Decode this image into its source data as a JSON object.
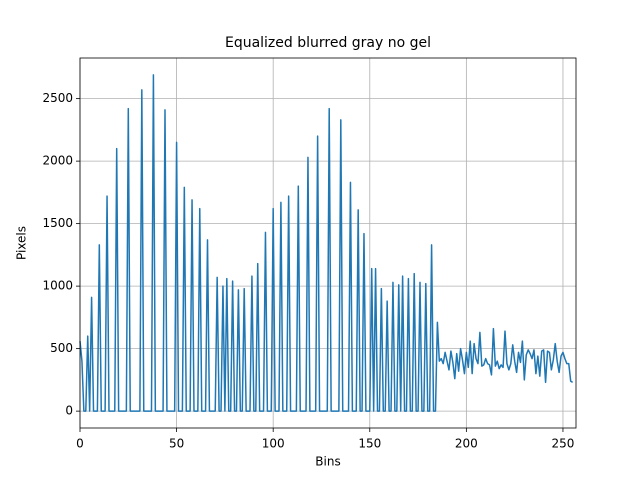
{
  "chart_data": {
    "type": "line",
    "title": "Equalized blurred gray no gel",
    "xlabel": "Bins",
    "ylabel": "Pixels",
    "x": [
      0,
      1,
      2,
      3,
      4,
      5,
      6,
      7,
      8,
      9,
      10,
      11,
      12,
      13,
      14,
      15,
      16,
      17,
      18,
      19,
      20,
      21,
      22,
      23,
      24,
      25,
      26,
      27,
      28,
      29,
      30,
      31,
      32,
      33,
      34,
      35,
      36,
      37,
      38,
      39,
      40,
      41,
      42,
      43,
      44,
      45,
      46,
      47,
      48,
      49,
      50,
      51,
      52,
      53,
      54,
      55,
      56,
      57,
      58,
      59,
      60,
      61,
      62,
      63,
      64,
      65,
      66,
      67,
      68,
      69,
      70,
      71,
      72,
      73,
      74,
      75,
      76,
      77,
      78,
      79,
      80,
      81,
      82,
      83,
      84,
      85,
      86,
      87,
      88,
      89,
      90,
      91,
      92,
      93,
      94,
      95,
      96,
      97,
      98,
      99,
      100,
      101,
      102,
      103,
      104,
      105,
      106,
      107,
      108,
      109,
      110,
      111,
      112,
      113,
      114,
      115,
      116,
      117,
      118,
      119,
      120,
      121,
      122,
      123,
      124,
      125,
      126,
      127,
      128,
      129,
      130,
      131,
      132,
      133,
      134,
      135,
      136,
      137,
      138,
      139,
      140,
      141,
      142,
      143,
      144,
      145,
      146,
      147,
      148,
      149,
      150,
      151,
      152,
      153,
      154,
      155,
      156,
      157,
      158,
      159,
      160,
      161,
      162,
      163,
      164,
      165,
      166,
      167,
      168,
      169,
      170,
      171,
      172,
      173,
      174,
      175,
      176,
      177,
      178,
      179,
      180,
      181,
      182,
      183,
      184,
      185,
      186,
      187,
      188,
      189,
      190,
      191,
      192,
      193,
      194,
      195,
      196,
      197,
      198,
      199,
      200,
      201,
      202,
      203,
      204,
      205,
      206,
      207,
      208,
      209,
      210,
      211,
      212,
      213,
      214,
      215,
      216,
      217,
      218,
      219,
      220,
      221,
      222,
      223,
      224,
      225,
      226,
      227,
      228,
      229,
      230,
      231,
      232,
      233,
      234,
      235,
      236,
      237,
      238,
      239,
      240,
      241,
      242,
      243,
      244,
      245,
      246,
      247,
      248,
      249,
      250,
      251,
      252,
      253,
      254,
      255
    ],
    "series": [
      {
        "color": "#1f77b4",
        "values": [
          560,
          400,
          0,
          0,
          600,
          0,
          910,
          0,
          0,
          0,
          1330,
          0,
          0,
          0,
          1720,
          0,
          0,
          0,
          0,
          2100,
          0,
          0,
          0,
          0,
          0,
          2420,
          0,
          0,
          0,
          0,
          0,
          0,
          2570,
          0,
          0,
          0,
          0,
          0,
          2690,
          0,
          0,
          0,
          0,
          0,
          2410,
          0,
          0,
          0,
          0,
          0,
          2150,
          0,
          0,
          0,
          1790,
          0,
          0,
          0,
          1690,
          0,
          0,
          0,
          1620,
          0,
          0,
          0,
          1370,
          0,
          0,
          0,
          0,
          1070,
          0,
          0,
          1000,
          0,
          1060,
          0,
          0,
          1040,
          0,
          0,
          970,
          0,
          0,
          980,
          0,
          0,
          0,
          1080,
          0,
          0,
          1180,
          0,
          0,
          0,
          1430,
          0,
          0,
          0,
          1620,
          0,
          0,
          0,
          1670,
          0,
          0,
          0,
          1720,
          0,
          0,
          0,
          0,
          1800,
          0,
          0,
          0,
          0,
          2030,
          0,
          0,
          0,
          0,
          2200,
          0,
          0,
          0,
          0,
          0,
          2420,
          0,
          0,
          0,
          0,
          0,
          2330,
          0,
          0,
          0,
          0,
          1830,
          0,
          0,
          0,
          1610,
          0,
          0,
          1420,
          0,
          0,
          0,
          1140,
          0,
          1140,
          0,
          0,
          980,
          0,
          0,
          880,
          0,
          0,
          1030,
          0,
          0,
          1010,
          0,
          1080,
          0,
          0,
          1060,
          0,
          0,
          1100,
          0,
          0,
          1030,
          0,
          0,
          1020,
          0,
          0,
          1330,
          0,
          0,
          710,
          400,
          420,
          380,
          470,
          400,
          330,
          480,
          390,
          260,
          460,
          320,
          500,
          410,
          300,
          470,
          350,
          560,
          300,
          540,
          420,
          380,
          630,
          360,
          370,
          420,
          380,
          370,
          290,
          660,
          360,
          400,
          340,
          370,
          350,
          640,
          380,
          330,
          380,
          530,
          400,
          310,
          470,
          390,
          560,
          250,
          450,
          490,
          460,
          420,
          490,
          300,
          440,
          280,
          480,
          490,
          230,
          480,
          470,
          330,
          410,
          540,
          400,
          310,
          440,
          470,
          420,
          380,
          380,
          240,
          230
        ]
      }
    ],
    "xlim": [
      0,
      256.75
    ],
    "ylim": [
      -135,
      2825
    ],
    "xticks": [
      0,
      50,
      100,
      150,
      200,
      250
    ],
    "yticks": [
      0,
      500,
      1000,
      1500,
      2000,
      2500
    ],
    "grid": true
  }
}
